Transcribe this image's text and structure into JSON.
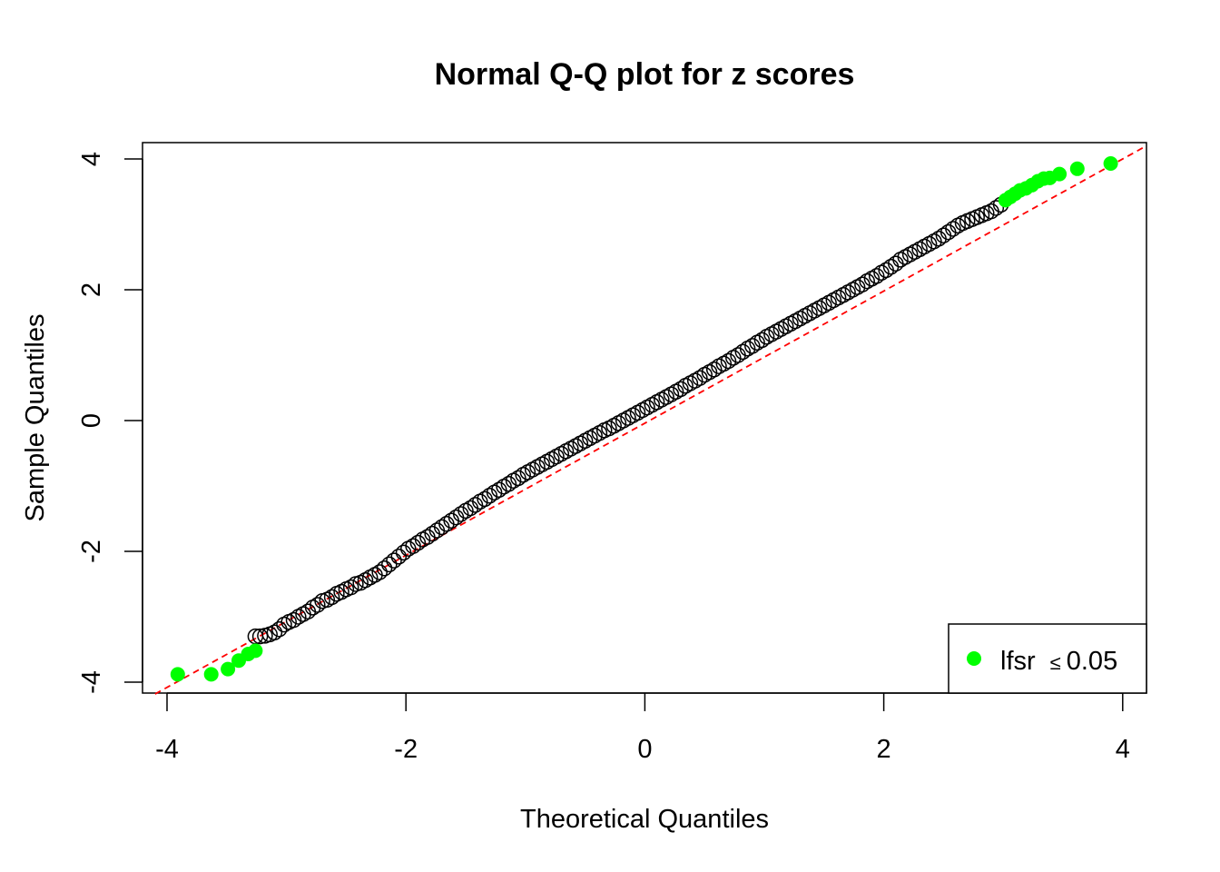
{
  "chart_data": {
    "type": "scatter",
    "title": "Normal Q-Q plot for z scores",
    "xlabel": "Theoretical Quantiles",
    "ylabel": "Sample Quantiles",
    "xlim": [
      -4.1,
      4.2
    ],
    "ylim": [
      -4.2,
      4.25
    ],
    "xticks": [
      -4,
      -2,
      0,
      2,
      4
    ],
    "yticks": [
      -4,
      -2,
      0,
      2,
      4
    ],
    "xtick_labels": [
      "-4",
      "-2",
      "0",
      "2",
      "4"
    ],
    "ytick_labels": [
      "-4",
      "-2",
      "0",
      "2",
      "4"
    ],
    "grid": false,
    "reference_line": {
      "intercept": -0.04,
      "slope": 1.01,
      "color": "#ff0000",
      "style": "dashed"
    },
    "series": [
      {
        "marker": "open-circle",
        "color": "#000000",
        "x": [
          -3.26,
          -3.22,
          -3.18,
          -3.14,
          -3.1,
          -3.06,
          -3.02,
          -2.98,
          -2.94,
          -2.9,
          -2.86,
          -2.82,
          -2.78,
          -2.74,
          -2.7,
          -2.66,
          -2.62,
          -2.58,
          -2.54,
          -2.5,
          -2.46,
          -2.42,
          -2.38,
          -2.34,
          -2.3,
          -2.26,
          -2.22,
          -2.18,
          -2.14,
          -2.1,
          -2.06,
          -2.02,
          -1.98,
          -1.94,
          -1.9,
          -1.86,
          -1.82,
          -1.78,
          -1.74,
          -1.7,
          -1.66,
          -1.62,
          -1.58,
          -1.54,
          -1.5,
          -1.46,
          -1.42,
          -1.38,
          -1.34,
          -1.3,
          -1.26,
          -1.22,
          -1.18,
          -1.14,
          -1.1,
          -1.06,
          -1.02,
          -0.98,
          -0.94,
          -0.9,
          -0.86,
          -0.82,
          -0.78,
          -0.74,
          -0.7,
          -0.66,
          -0.62,
          -0.58,
          -0.54,
          -0.5,
          -0.46,
          -0.42,
          -0.38,
          -0.34,
          -0.3,
          -0.26,
          -0.22,
          -0.18,
          -0.14,
          -0.1,
          -0.06,
          -0.02,
          0.02,
          0.06,
          0.1,
          0.14,
          0.18,
          0.22,
          0.26,
          0.3,
          0.34,
          0.38,
          0.42,
          0.46,
          0.5,
          0.54,
          0.58,
          0.62,
          0.66,
          0.7,
          0.74,
          0.78,
          0.82,
          0.86,
          0.9,
          0.94,
          0.98,
          1.02,
          1.06,
          1.1,
          1.14,
          1.18,
          1.22,
          1.26,
          1.3,
          1.34,
          1.38,
          1.42,
          1.46,
          1.5,
          1.54,
          1.58,
          1.62,
          1.66,
          1.7,
          1.74,
          1.78,
          1.82,
          1.86,
          1.9,
          1.94,
          1.98,
          2.02,
          2.06,
          2.1,
          2.14,
          2.18,
          2.22,
          2.26,
          2.3,
          2.34,
          2.38,
          2.42,
          2.46,
          2.5,
          2.54,
          2.58,
          2.62,
          2.66,
          2.7,
          2.74,
          2.78,
          2.82,
          2.86,
          2.9,
          2.94,
          2.98
        ],
        "y": [
          -3.3,
          -3.3,
          -3.29,
          -3.27,
          -3.24,
          -3.19,
          -3.12,
          -3.08,
          -3.05,
          -3.0,
          -2.96,
          -2.92,
          -2.86,
          -2.82,
          -2.76,
          -2.74,
          -2.7,
          -2.65,
          -2.62,
          -2.58,
          -2.55,
          -2.5,
          -2.48,
          -2.44,
          -2.4,
          -2.36,
          -2.32,
          -2.26,
          -2.2,
          -2.14,
          -2.08,
          -2.02,
          -1.96,
          -1.92,
          -1.87,
          -1.82,
          -1.78,
          -1.73,
          -1.68,
          -1.63,
          -1.58,
          -1.53,
          -1.48,
          -1.43,
          -1.38,
          -1.34,
          -1.29,
          -1.24,
          -1.2,
          -1.15,
          -1.1,
          -1.06,
          -1.01,
          -0.97,
          -0.92,
          -0.88,
          -0.83,
          -0.79,
          -0.75,
          -0.71,
          -0.67,
          -0.63,
          -0.59,
          -0.55,
          -0.51,
          -0.47,
          -0.43,
          -0.39,
          -0.35,
          -0.31,
          -0.27,
          -0.23,
          -0.19,
          -0.15,
          -0.12,
          -0.08,
          -0.04,
          0.0,
          0.04,
          0.08,
          0.12,
          0.16,
          0.2,
          0.24,
          0.28,
          0.32,
          0.36,
          0.4,
          0.44,
          0.48,
          0.53,
          0.57,
          0.61,
          0.65,
          0.7,
          0.74,
          0.78,
          0.83,
          0.87,
          0.91,
          0.96,
          1.0,
          1.05,
          1.1,
          1.14,
          1.19,
          1.23,
          1.28,
          1.32,
          1.36,
          1.4,
          1.44,
          1.48,
          1.52,
          1.56,
          1.6,
          1.64,
          1.68,
          1.72,
          1.76,
          1.8,
          1.84,
          1.88,
          1.92,
          1.96,
          2.0,
          2.04,
          2.08,
          2.13,
          2.17,
          2.21,
          2.26,
          2.3,
          2.35,
          2.4,
          2.46,
          2.5,
          2.54,
          2.58,
          2.62,
          2.66,
          2.7,
          2.74,
          2.78,
          2.83,
          2.88,
          2.93,
          2.98,
          3.02,
          3.05,
          3.08,
          3.11,
          3.14,
          3.17,
          3.2,
          3.25,
          3.3
        ]
      },
      {
        "marker": "filled-circle",
        "color": "#00ff00",
        "name": "lfsr",
        "x": [
          -3.91,
          -3.63,
          -3.49,
          -3.4,
          -3.32,
          -3.26,
          3.02,
          3.06,
          3.1,
          3.14,
          3.19,
          3.24,
          3.29,
          3.34,
          3.39,
          3.47,
          3.62,
          3.9
        ],
        "y": [
          -3.88,
          -3.88,
          -3.8,
          -3.67,
          -3.57,
          -3.52,
          3.37,
          3.42,
          3.47,
          3.52,
          3.55,
          3.6,
          3.66,
          3.7,
          3.71,
          3.77,
          3.85,
          3.93
        ]
      }
    ],
    "legend": {
      "position": "bottom-right",
      "marker_color": "#00ff00",
      "label": "lfsr",
      "symbol": "≤",
      "value": "0.05"
    }
  }
}
